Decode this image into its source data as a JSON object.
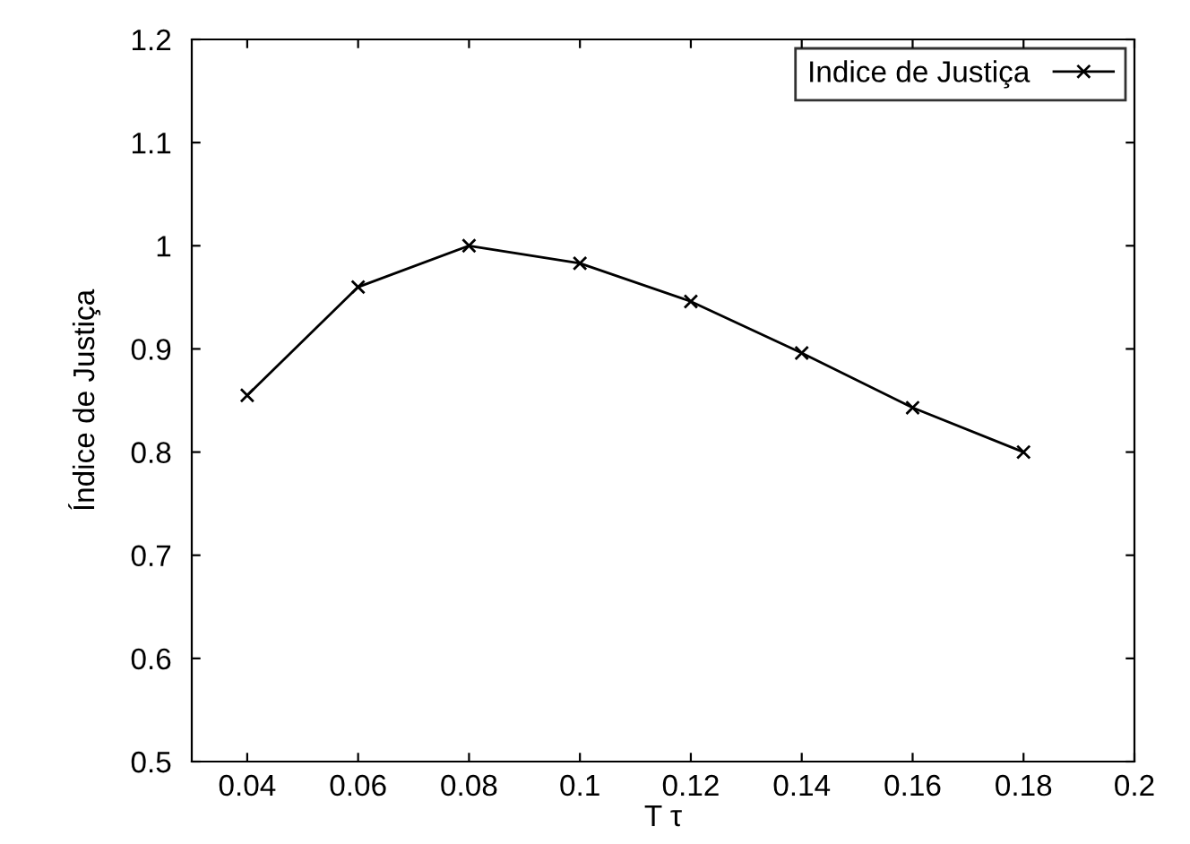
{
  "chart_data": {
    "type": "line",
    "xlabel": "T τ",
    "ylabel": "Índice de Justiça",
    "x": [
      0.04,
      0.06,
      0.08,
      0.1,
      0.12,
      0.14,
      0.16,
      0.18
    ],
    "series": [
      {
        "name": "Indice de Justiça",
        "color": "#000000",
        "values": [
          0.855,
          0.96,
          1.0,
          0.983,
          0.946,
          0.896,
          0.843,
          0.8
        ]
      }
    ],
    "xlim": [
      0.03,
      0.2
    ],
    "xticks": [
      0.04,
      0.06,
      0.08,
      0.1,
      0.12,
      0.14,
      0.16,
      0.18,
      0.2
    ],
    "ylim": [
      0.5,
      1.2
    ],
    "yticks": [
      0.5,
      0.6,
      0.7,
      0.8,
      0.9,
      1,
      1.1,
      1.2
    ],
    "marker": "cross",
    "line_style": "solid",
    "grid": false,
    "legend": "top right"
  }
}
